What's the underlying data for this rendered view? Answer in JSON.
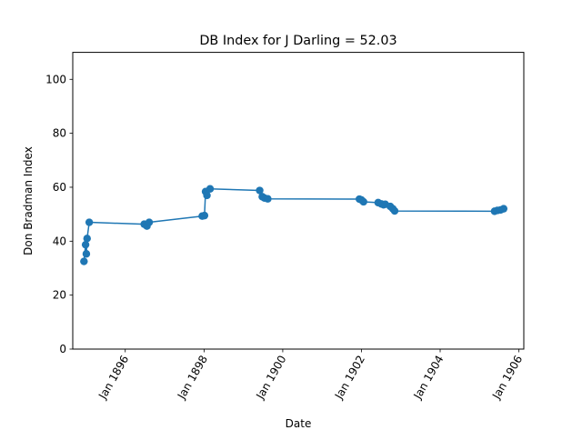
{
  "chart_data": {
    "type": "line",
    "title": "DB Index for J Darling = 52.03",
    "xlabel": "Date",
    "ylabel": "Don Bradman Index",
    "xlim": [
      "1894-09-01",
      "1906-02-15"
    ],
    "ylim": [
      0,
      110
    ],
    "x_ticks": [
      {
        "date": "1896-01-01",
        "label": "Jan 1896"
      },
      {
        "date": "1898-01-01",
        "label": "Jan 1898"
      },
      {
        "date": "1900-01-01",
        "label": "Jan 1900"
      },
      {
        "date": "1902-01-01",
        "label": "Jan 1902"
      },
      {
        "date": "1904-01-01",
        "label": "Jan 1904"
      },
      {
        "date": "1906-01-01",
        "label": "Jan 1906"
      }
    ],
    "y_ticks": [
      0,
      20,
      40,
      60,
      80,
      100
    ],
    "grid": false,
    "color": "#1f77b4",
    "series": [
      {
        "marker": "circle",
        "points": [
          {
            "x": "1894-12-14",
            "y": 32.5
          },
          {
            "x": "1894-12-29",
            "y": 38.7
          },
          {
            "x": "1895-01-05",
            "y": 35.3
          },
          {
            "x": "1895-01-12",
            "y": 41.0
          },
          {
            "x": "1895-02-01",
            "y": 47.0
          },
          {
            "x": "1896-06-25",
            "y": 46.3
          },
          {
            "x": "1896-07-20",
            "y": 45.6
          },
          {
            "x": "1896-08-10",
            "y": 47.0
          },
          {
            "x": "1897-12-15",
            "y": 49.3
          },
          {
            "x": "1898-01-05",
            "y": 49.5
          },
          {
            "x": "1898-01-15",
            "y": 58.4
          },
          {
            "x": "1898-01-28",
            "y": 57.0
          },
          {
            "x": "1898-02-26",
            "y": 59.4
          },
          {
            "x": "1899-06-01",
            "y": 58.8
          },
          {
            "x": "1899-06-25",
            "y": 56.5
          },
          {
            "x": "1899-07-15",
            "y": 56.0
          },
          {
            "x": "1899-08-15",
            "y": 55.7
          },
          {
            "x": "1901-12-13",
            "y": 55.6
          },
          {
            "x": "1902-01-01",
            "y": 55.3
          },
          {
            "x": "1902-01-20",
            "y": 54.6
          },
          {
            "x": "1902-06-05",
            "y": 54.3
          },
          {
            "x": "1902-07-05",
            "y": 53.8
          },
          {
            "x": "1902-07-25",
            "y": 53.5
          },
          {
            "x": "1902-08-10",
            "y": 53.7
          },
          {
            "x": "1902-09-25",
            "y": 52.9
          },
          {
            "x": "1902-10-20",
            "y": 52.0
          },
          {
            "x": "1902-11-05",
            "y": 51.2
          },
          {
            "x": "1905-05-20",
            "y": 51.1
          },
          {
            "x": "1905-06-15",
            "y": 51.4
          },
          {
            "x": "1905-07-15",
            "y": 51.6
          },
          {
            "x": "1905-08-12",
            "y": 52.03
          }
        ]
      }
    ]
  }
}
